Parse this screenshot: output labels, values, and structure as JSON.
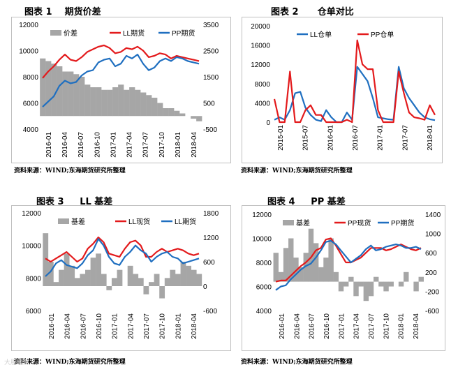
{
  "panels": [
    {
      "title": "图表 1    期货价差",
      "source": "资料来源：WIND;东海期货研究所整理"
    },
    {
      "title": "图表 2      仓单对比",
      "source": "资料来源：WIND;东海期货研究所整理"
    },
    {
      "title": "图表 3     LL 基差",
      "source": "资料来源：WIND;东海期货研究所整理"
    },
    {
      "title": "图表 4     PP 基差",
      "source": "资料来源：WIND;东海期货研究所整理"
    }
  ],
  "watermark": "大胆理财",
  "chart_data": [
    {
      "type": "line",
      "x_labels": [
        "2016-01",
        "2016-04",
        "2016-07",
        "2016-10",
        "2017-01",
        "2017-04",
        "2017-07",
        "2017-10",
        "2018-01",
        "2018-04"
      ],
      "ylim": [
        4000,
        12000
      ],
      "yticks": [
        "4000",
        "6000",
        "8000",
        "10000",
        "12000"
      ],
      "y2lim": [
        -500,
        3500
      ],
      "y2ticks": [
        "-500",
        "500",
        "1500",
        "2500",
        "3500"
      ],
      "legend_position": "top",
      "series": [
        {
          "name": "价差",
          "axis": "right",
          "style": "area",
          "color": "#a6a6a6",
          "values": [
            2200,
            2100,
            2000,
            1900,
            1700,
            1700,
            1600,
            1500,
            1200,
            1100,
            1100,
            1000,
            1000,
            1100,
            1200,
            1000,
            1100,
            1000,
            900,
            800,
            700,
            500,
            300,
            300,
            200,
            100,
            0,
            -100,
            -200
          ]
        },
        {
          "name": "LL期货",
          "axis": "left",
          "style": "line",
          "color": "#e31a1c",
          "values": [
            7900,
            8400,
            8800,
            9300,
            9700,
            9300,
            9200,
            9500,
            9900,
            10100,
            10300,
            10400,
            10200,
            9800,
            9900,
            10200,
            10100,
            10300,
            10000,
            9500,
            9600,
            9800,
            9700,
            9400,
            9600,
            9500,
            9400,
            9300,
            9200
          ]
        },
        {
          "name": "PP期货",
          "axis": "left",
          "style": "line",
          "color": "#1f6fc0",
          "values": [
            5700,
            6100,
            6500,
            7300,
            7700,
            7500,
            7600,
            8100,
            8400,
            8500,
            9100,
            9300,
            9400,
            8800,
            9000,
            9600,
            9400,
            9700,
            9000,
            8500,
            8700,
            9200,
            9400,
            9200,
            9500,
            9400,
            9200,
            9100,
            9000
          ]
        }
      ]
    },
    {
      "type": "line",
      "x_labels": [
        "2015-01",
        "2015-07",
        "2016-01",
        "2016-07",
        "2017-01",
        "2017-07",
        "2018-01"
      ],
      "ylim": [
        0,
        20000
      ],
      "yticks": [
        "0",
        "4000",
        "8000",
        "12000",
        "16000",
        "20000"
      ],
      "legend_position": "top",
      "series": [
        {
          "name": "LL仓单",
          "color": "#1f6fc0",
          "values": [
            500,
            1000,
            500,
            2500,
            6000,
            6300,
            3000,
            1500,
            500,
            200,
            2500,
            1000,
            0,
            0,
            2000,
            500,
            11500,
            10000,
            8500,
            5000,
            1000,
            800,
            600,
            500,
            11500,
            7000,
            5000,
            3500,
            2000,
            1000,
            600,
            400
          ]
        },
        {
          "name": "PP仓单",
          "color": "#e31a1c",
          "values": [
            4800,
            0,
            0,
            10500,
            0,
            0,
            2500,
            3500,
            1500,
            1500,
            0,
            0,
            0,
            0,
            500,
            0,
            17000,
            12000,
            11000,
            11000,
            2500,
            0,
            0,
            0,
            10500,
            6000,
            2000,
            1000,
            800,
            500,
            3500,
            1500
          ]
        }
      ]
    },
    {
      "type": "line",
      "x_labels": [
        "2016-01",
        "2016-04",
        "2016-07",
        "2016-10",
        "2017-01",
        "2017-04",
        "2017-07",
        "2017-10",
        "2018-01",
        "2018-04"
      ],
      "ylim": [
        6000,
        12000
      ],
      "yticks": [
        "6000",
        "8000",
        "10000",
        "12000"
      ],
      "y2lim": [
        -600,
        1800
      ],
      "y2ticks": [
        "-600",
        "0",
        "600",
        "1200",
        "1800"
      ],
      "legend_position": "top",
      "series": [
        {
          "name": "基差",
          "axis": "right",
          "style": "area",
          "color": "#a6a6a6",
          "values": [
            1300,
            600,
            100,
            400,
            800,
            500,
            200,
            300,
            400,
            700,
            800,
            300,
            -100,
            200,
            400,
            0,
            500,
            300,
            200,
            -200,
            100,
            300,
            -300,
            200,
            400,
            300,
            600,
            500,
            400,
            300
          ]
        },
        {
          "name": "LL现货",
          "axis": "left",
          "style": "line",
          "color": "#e31a1c",
          "values": [
            9200,
            9000,
            9200,
            9400,
            9600,
            9300,
            9000,
            9200,
            9800,
            10100,
            10500,
            10200,
            9500,
            9400,
            9300,
            9800,
            10200,
            10300,
            10000,
            9300,
            9300,
            9600,
            9800,
            9600,
            9700,
            9800,
            9700,
            9500,
            9400,
            9500
          ]
        },
        {
          "name": "LL期货",
          "axis": "left",
          "style": "line",
          "color": "#1f6fc0",
          "values": [
            8100,
            8400,
            8900,
            9100,
            8800,
            8700,
            8600,
            8900,
            9400,
            9700,
            10400,
            10000,
            9300,
            8900,
            8800,
            9300,
            9600,
            10000,
            9700,
            9500,
            9000,
            9300,
            9500,
            9600,
            9300,
            9200,
            8900,
            9000,
            9100,
            9200
          ]
        }
      ]
    },
    {
      "type": "line",
      "x_labels": [
        "2016-01",
        "2016-04",
        "2016-07",
        "2016-10",
        "2017-01",
        "2017-04",
        "2017-07",
        "2017-10",
        "2018-01",
        "2018-04"
      ],
      "ylim": [
        4000,
        12000
      ],
      "yticks": [
        "4000",
        "6000",
        "8000",
        "10000",
        "12000"
      ],
      "y2lim": [
        -600,
        1400
      ],
      "y2ticks": [
        "-600",
        "-200",
        "200",
        "600",
        "1000",
        "1400"
      ],
      "legend_position": "top",
      "series": [
        {
          "name": "基差",
          "axis": "right",
          "style": "area",
          "color": "#a6a6a6",
          "values": [
            600,
            200,
            700,
            900,
            500,
            300,
            600,
            1100,
            800,
            300,
            500,
            900,
            200,
            -200,
            -100,
            100,
            -300,
            -100,
            -400,
            -300,
            100,
            -100,
            -200,
            -100,
            0,
            -100,
            200,
            0,
            -200,
            100
          ]
        },
        {
          "name": "PP现货",
          "axis": "left",
          "style": "line",
          "color": "#e31a1c",
          "values": [
            6400,
            6500,
            6500,
            6900,
            7300,
            7700,
            8000,
            8400,
            9000,
            9200,
            9900,
            10000,
            9400,
            8700,
            8000,
            8000,
            8200,
            8400,
            8800,
            9200,
            9200,
            9200,
            9000,
            9100,
            9300,
            9500,
            9300,
            9100,
            9000,
            9200
          ]
        },
        {
          "name": "PP期货",
          "axis": "left",
          "style": "line",
          "color": "#1f6fc0",
          "values": [
            5700,
            6000,
            6100,
            6600,
            7000,
            7400,
            7700,
            7900,
            8400,
            9000,
            9700,
            9800,
            9500,
            9000,
            8500,
            8000,
            8300,
            8600,
            9100,
            9400,
            9000,
            9100,
            9300,
            9400,
            9500,
            9400,
            9200,
            9200,
            9300,
            9100
          ]
        }
      ]
    }
  ]
}
